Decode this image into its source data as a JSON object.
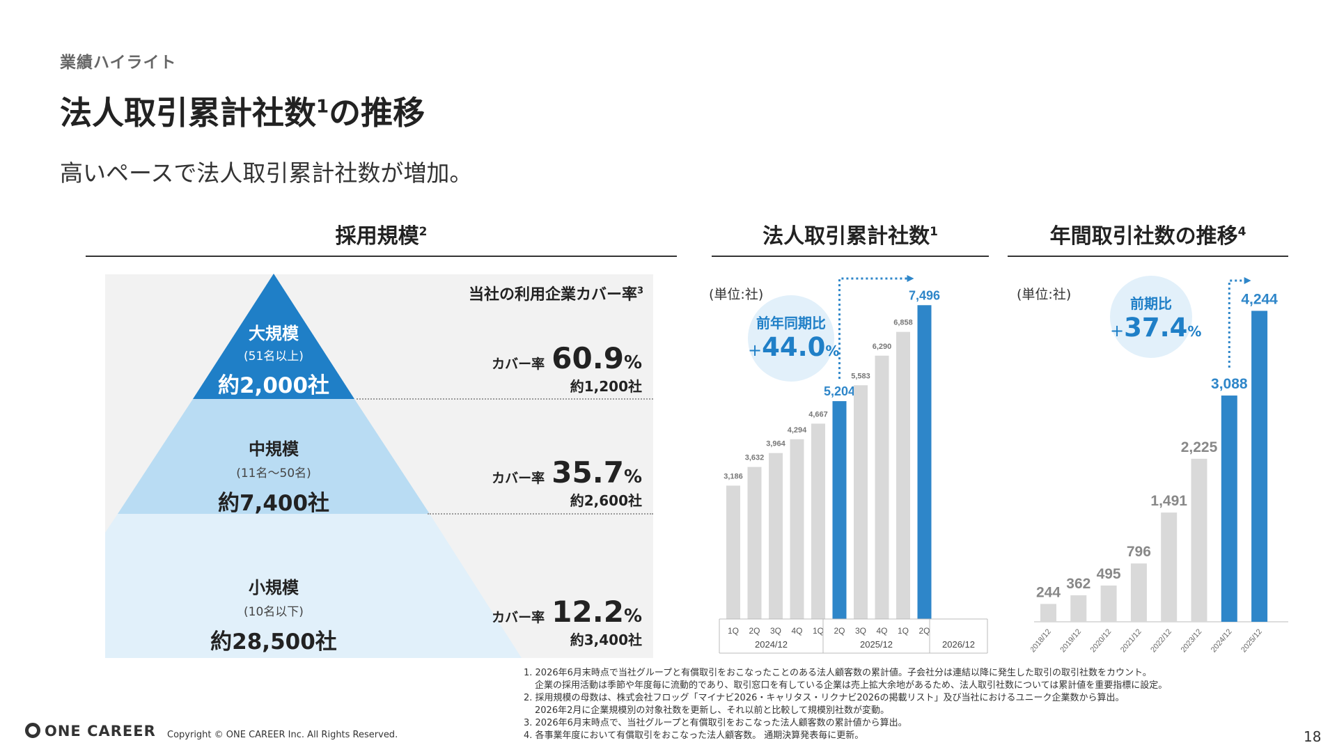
{
  "header": {
    "eyebrow": "業績ハイライト",
    "title": "法人取引累計社数",
    "title_sup": "1",
    "title_tail": "の推移",
    "subtitle": "高いペースで法人取引累計社数が増加。"
  },
  "pyramid": {
    "section_title": "採用規模",
    "section_sup": "2",
    "coverage_header": "当社の利用企業カバー率",
    "coverage_header_sup": "3",
    "cover_label": "カバー率",
    "tiers": [
      {
        "name": "大規模",
        "sub": "(51名以上)",
        "total": "約2,000社",
        "coverage": "60.9",
        "pct": "%",
        "count": "約1,200社"
      },
      {
        "name": "中規模",
        "sub": "(11名〜50名)",
        "total": "約7,400社",
        "coverage": "35.7",
        "pct": "%",
        "count": "約2,600社"
      },
      {
        "name": "小規模",
        "sub": "(10名以下)",
        "total": "約28,500社",
        "coverage": "12.2",
        "pct": "%",
        "count": "約3,400社"
      }
    ],
    "colors": {
      "large": "#1f7fc7",
      "mid": "#b9dcf3",
      "small": "#e1f0fa"
    }
  },
  "cumulative": {
    "section_title": "法人取引累計社数",
    "section_sup": "1",
    "unit": "(単位:社)",
    "bubble_label": "前年同期比",
    "bubble_plus": "+",
    "bubble_value": "44.0",
    "bubble_pct": "%",
    "year_groups": [
      "2024/12",
      "2025/12",
      "2026/12"
    ]
  },
  "annual": {
    "section_title": "年間取引社数の推移",
    "section_sup": "4",
    "unit": "(単位:社)",
    "bubble_label": "前期比",
    "bubble_plus": "+",
    "bubble_value": "37.4",
    "bubble_pct": "%"
  },
  "chart_data": [
    {
      "type": "bar",
      "title": "法人取引累計社数",
      "categories": [
        "1Q",
        "2Q",
        "3Q",
        "4Q",
        "1Q",
        "2Q",
        "3Q",
        "4Q",
        "1Q",
        "2Q"
      ],
      "groups": [
        "2024/12",
        "2024/12",
        "2024/12",
        "2024/12",
        "2025/12",
        "2025/12",
        "2025/12",
        "2025/12",
        "2026/12",
        "2026/12"
      ],
      "values": [
        3186,
        3632,
        3964,
        4294,
        4667,
        5204,
        5583,
        6290,
        6858,
        7496
      ],
      "labels": [
        "3,186",
        "3,632",
        "3,964",
        "4,294",
        "4,667",
        "5,204",
        "5,583",
        "6,290",
        "6,858",
        "7,496"
      ],
      "highlight": [
        5,
        9
      ],
      "ylim": [
        0,
        7800
      ],
      "colors": {
        "bar": "#d9d9d9",
        "highlight": "#2e86c9"
      }
    },
    {
      "type": "bar",
      "title": "年間取引社数の推移",
      "categories": [
        "2018/12",
        "2019/12",
        "2020/12",
        "2021/12",
        "2022/12",
        "2023/12",
        "2024/12",
        "2025/12"
      ],
      "values": [
        244,
        362,
        495,
        796,
        1491,
        2225,
        3088,
        4244
      ],
      "labels": [
        "244",
        "362",
        "495",
        "796",
        "1,491",
        "2,225",
        "3,088",
        "4,244"
      ],
      "highlight": [
        6,
        7
      ],
      "ylim": [
        0,
        4400
      ],
      "colors": {
        "bar": "#d9d9d9",
        "highlight": "#2e86c9"
      }
    }
  ],
  "footnotes": [
    "1. 2026年6月末時点で当社グループと有償取引をおこなったことのある法人顧客数の累計値。子会社分は連結以降に発生した取引の取引社数をカウント。",
    "企業の採用活動は季節や年度毎に流動的であり、取引窓口を有している企業は売上拡大余地があるため、法人取引社数については累計値を重要指標に設定。",
    "2. 採用規模の母数は、株式会社フロッグ「マイナビ2026・キャリタス・リクナビ2026の掲載リスト」及び当社におけるユニーク企業数から算出。",
    "2026年2月に企業規模別の対象社数を更新し、それ以前と比較して規模別社数が変動。",
    "3. 2026年6月末時点で、当社グループと有償取引をおこなった法人顧客数の累計値から算出。",
    "4. 各事業年度において有償取引をおこなった法人顧客数。 通期決算発表毎に更新。"
  ],
  "footer": {
    "logo": "ONE CAREER",
    "copyright": "Copyright © ONE CAREER Inc. All Rights Reserved.",
    "page": "18"
  }
}
